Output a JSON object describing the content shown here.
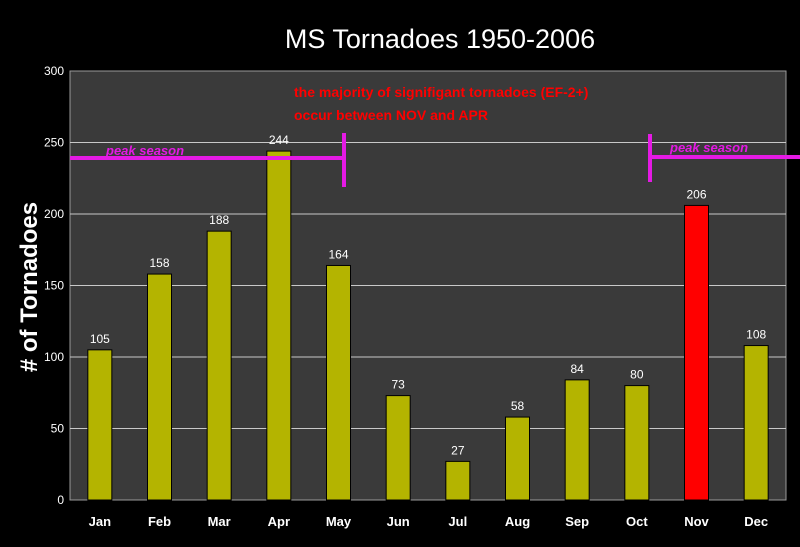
{
  "chart_data": {
    "type": "bar",
    "title": "MS Tornadoes 1950-2006",
    "xlabel": "",
    "ylabel": "# of Tornadoes",
    "ylim": [
      0,
      300
    ],
    "yticks": [
      0,
      50,
      100,
      150,
      200,
      250,
      300
    ],
    "grid": true,
    "categories": [
      "Jan",
      "Feb",
      "Mar",
      "Apr",
      "May",
      "Jun",
      "Jul",
      "Aug",
      "Sep",
      "Oct",
      "Nov",
      "Dec"
    ],
    "values": [
      105,
      158,
      188,
      244,
      164,
      73,
      27,
      58,
      84,
      80,
      206,
      108
    ],
    "bar_colors": [
      "#b4b400",
      "#b4b400",
      "#b4b400",
      "#b4b400",
      "#b4b400",
      "#b4b400",
      "#b4b400",
      "#b4b400",
      "#b4b400",
      "#b4b400",
      "#ff0000",
      "#b4b400"
    ],
    "annotations": {
      "note_line1": "the majority of signifigant tornadoes (EF-2+)",
      "note_line2": "occur between NOV and APR",
      "peak_left": "peak season",
      "peak_right": "peak season"
    },
    "colors": {
      "background": "#000000",
      "plot_area": "#3a3a3a",
      "gridline": "#c8c8c8",
      "annotation": "#ff0000",
      "peak_marker": "#e41ae4"
    }
  }
}
